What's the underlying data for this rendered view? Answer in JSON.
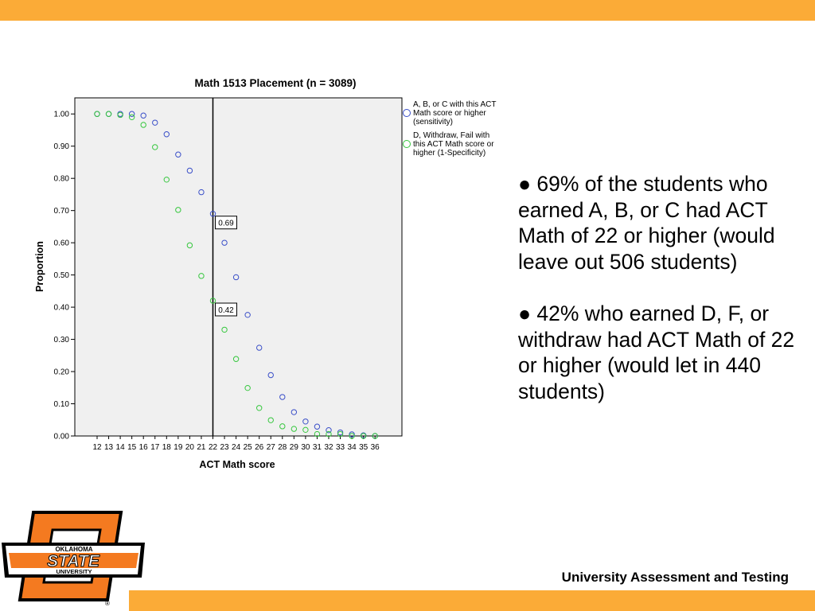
{
  "footer": {
    "text": "University Assessment and Testing"
  },
  "notes": [
    "● 69% of the students who earned A, B, or C had ACT Math of 22 or higher (would leave out 506 students)",
    "● 42% who earned D, F, or withdraw had ACT Math of 22 or higher (would let in 440 students)"
  ],
  "logo": {
    "top_text": "OKLAHOMA",
    "main_text": "STATE",
    "bottom_text": "UNIVERSITY",
    "registered": "®"
  },
  "colors": {
    "accent": "#fbab37",
    "series_sensitivity": "#3a4fc8",
    "series_specificity": "#36c73e",
    "logo_orange": "#f47a20"
  },
  "chart_data": {
    "type": "scatter",
    "title": "Math 1513 Placement (n = 3089)",
    "xlabel": "ACT Math score",
    "ylabel": "Proportion",
    "categories": [
      "12",
      "13",
      "14",
      "15",
      "16",
      "17",
      "18",
      "19",
      "20",
      "21",
      "22",
      "23",
      "24",
      "25",
      "26",
      "27",
      "28",
      "29",
      "30",
      "31",
      "32",
      "33",
      "34",
      "35",
      "36"
    ],
    "ylim": [
      0,
      1.05
    ],
    "yticks": [
      "0.00",
      "0.10",
      "0.20",
      "0.30",
      "0.40",
      "0.50",
      "0.60",
      "0.70",
      "0.80",
      "0.90",
      "1.00"
    ],
    "grid": false,
    "legend_position": "right",
    "reference_line": {
      "x": "22"
    },
    "annotations": [
      {
        "label": "0.69",
        "x": "22",
        "y": 0.69
      },
      {
        "label": "0.42",
        "x": "22",
        "y": 0.42
      }
    ],
    "series": [
      {
        "name": "A, B, or C with this ACT Math score or higher (sensitivity)",
        "legend_lines": [
          "A, B, or C with this ACT",
          "Math score or higher",
          "(sensitivity)"
        ],
        "color": "#3a4fc8",
        "values": [
          1.0,
          1.0,
          1.0,
          1.0,
          0.995,
          0.973,
          0.937,
          0.874,
          0.824,
          0.757,
          0.69,
          0.6,
          0.493,
          0.376,
          0.274,
          0.189,
          0.121,
          0.074,
          0.045,
          0.029,
          0.018,
          0.011,
          0.005,
          0.002,
          0.0
        ]
      },
      {
        "name": "D, Withdraw, Fail with this ACT Math score or higher (1-Specificity)",
        "legend_lines": [
          "D, Withdraw, Fail with",
          "this ACT Math score or",
          "higher (1-Specificity)"
        ],
        "color": "#36c73e",
        "values": [
          1.0,
          1.0,
          0.997,
          0.99,
          0.966,
          0.897,
          0.796,
          0.702,
          0.592,
          0.497,
          0.42,
          0.33,
          0.239,
          0.149,
          0.087,
          0.049,
          0.03,
          0.022,
          0.019,
          0.006,
          0.006,
          0.006,
          0.0,
          0.0,
          0.0
        ]
      }
    ]
  }
}
